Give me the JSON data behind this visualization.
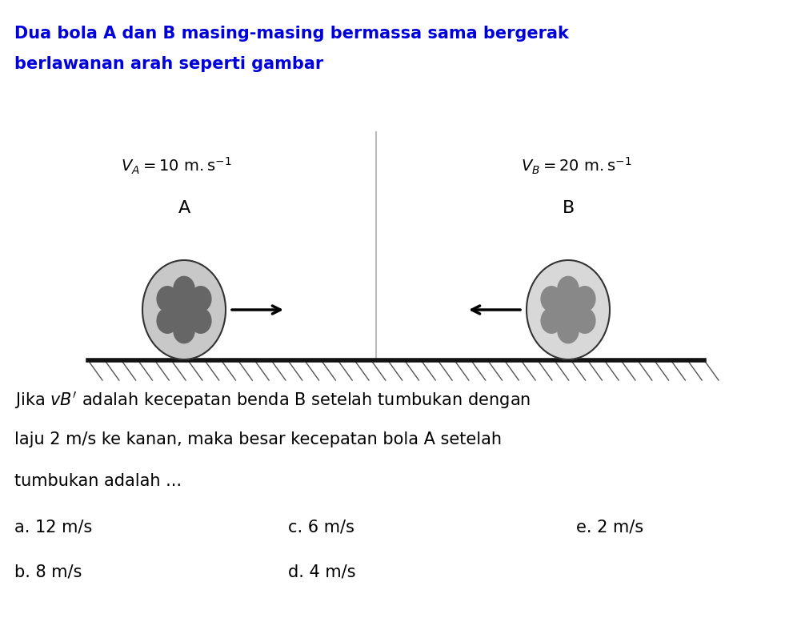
{
  "title_line1": "Dua bola A dan B masing-masing bermassa sama bergerak",
  "title_line2": "berlawanan arah seperti gambar",
  "va_label": "$V_A = 10\\ \\mathrm{m.s}^{-1}$",
  "vb_label": "$V_B = 20\\ \\mathrm{m.s}^{-1}$",
  "label_A": "A",
  "label_B": "B",
  "question_line1": "Jika $vB'$ adalah kecepatan benda B setelah tumbukan dengan",
  "question_line2": "laju 2 m/s ke kanan, maka besar kecepatan bola A setelah",
  "question_line3": "tumbukan adalah ...",
  "options": [
    [
      "a. 12 m/s",
      "c. 6 m/s",
      "e. 2 m/s"
    ],
    [
      "b. 8 m/s",
      "d. 4 m/s",
      ""
    ]
  ],
  "bg_color": "#ffffff",
  "text_color": "#000000",
  "title_color": "#0000dd",
  "ball_color_A": "#aaaaaa",
  "ball_color_B": "#cccccc",
  "floor_color": "#111111",
  "hatch_color": "#555555"
}
